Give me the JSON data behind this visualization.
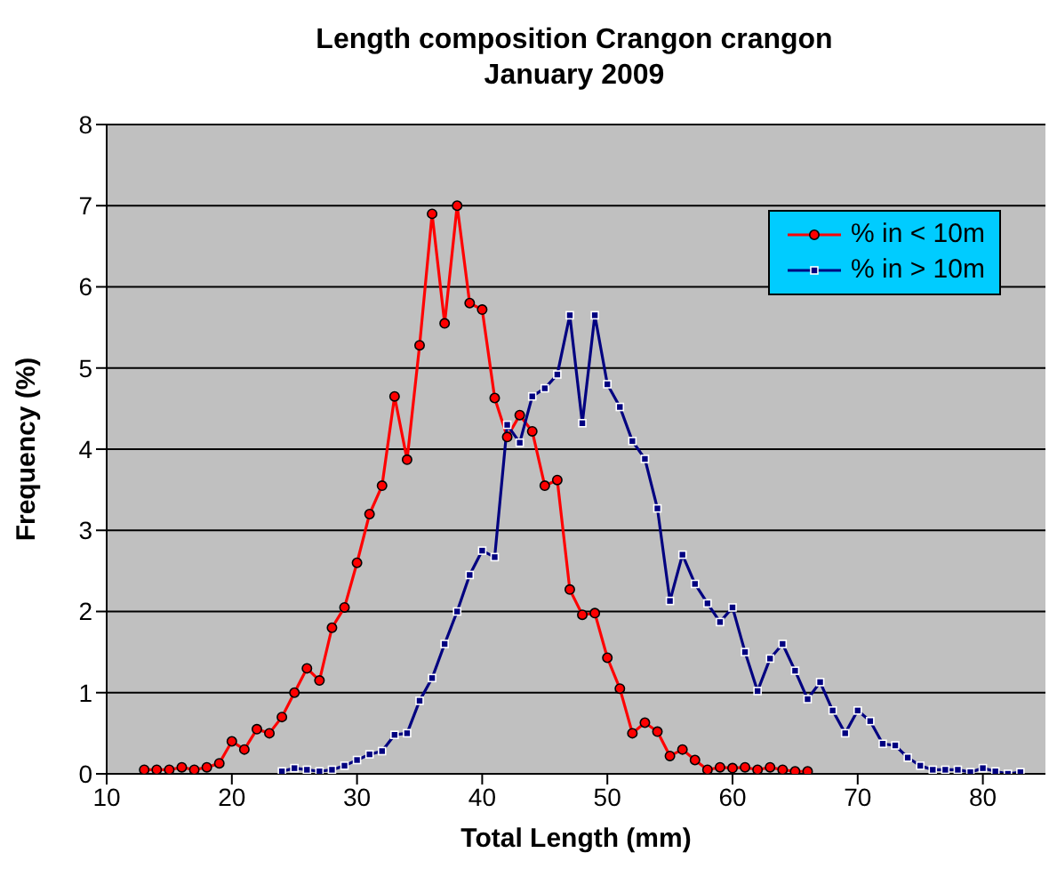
{
  "chart_data": {
    "type": "line",
    "title": "Length composition Crangon crangon\nJanuary 2009",
    "xlabel": "Total Length  (mm)",
    "ylabel": "Frequency  (%)",
    "xlim": [
      10,
      85
    ],
    "xticks": [
      10,
      20,
      30,
      40,
      50,
      60,
      70,
      80
    ],
    "ylim": [
      0,
      8
    ],
    "yticks": [
      0,
      1,
      2,
      3,
      4,
      5,
      6,
      7,
      8
    ],
    "grid": "y",
    "legend": "top right",
    "series": [
      {
        "name": "% in < 10m",
        "color": "#ff0000",
        "marker": "circle",
        "x": [
          13,
          14,
          15,
          16,
          17,
          18,
          19,
          20,
          21,
          22,
          23,
          24,
          25,
          26,
          27,
          28,
          29,
          30,
          31,
          32,
          33,
          34,
          35,
          36,
          37,
          38,
          39,
          40,
          41,
          42,
          43,
          44,
          45,
          46,
          47,
          48,
          49,
          50,
          51,
          52,
          53,
          54,
          55,
          56,
          57,
          58,
          59,
          60,
          61,
          62,
          63,
          64,
          65,
          66
        ],
        "values": [
          0.05,
          0.05,
          0.05,
          0.08,
          0.05,
          0.08,
          0.13,
          0.4,
          0.3,
          0.55,
          0.5,
          0.7,
          1.0,
          1.3,
          1.15,
          1.8,
          2.05,
          2.6,
          3.2,
          3.55,
          4.65,
          3.87,
          5.28,
          6.9,
          5.55,
          7.0,
          5.8,
          5.72,
          4.63,
          4.15,
          4.42,
          4.22,
          3.55,
          3.62,
          2.27,
          1.96,
          1.98,
          1.43,
          1.05,
          0.5,
          0.63,
          0.52,
          0.22,
          0.3,
          0.17,
          0.05,
          0.08,
          0.07,
          0.08,
          0.05,
          0.08,
          0.05,
          0.03,
          0.03
        ]
      },
      {
        "name": "% in > 10m",
        "color": "#000080",
        "marker": "square",
        "x": [
          24,
          25,
          26,
          27,
          28,
          29,
          30,
          31,
          32,
          33,
          34,
          35,
          36,
          37,
          38,
          39,
          40,
          41,
          42,
          43,
          44,
          45,
          46,
          47,
          48,
          49,
          50,
          51,
          52,
          53,
          54,
          55,
          56,
          57,
          58,
          59,
          60,
          61,
          62,
          63,
          64,
          65,
          66,
          67,
          68,
          69,
          70,
          71,
          72,
          73,
          74,
          75,
          76,
          77,
          78,
          79,
          80,
          81,
          82,
          83
        ],
        "values": [
          0.03,
          0.07,
          0.05,
          0.03,
          0.05,
          0.1,
          0.17,
          0.24,
          0.28,
          0.48,
          0.5,
          0.9,
          1.18,
          1.6,
          2.0,
          2.45,
          2.75,
          2.67,
          4.3,
          4.08,
          4.65,
          4.75,
          4.92,
          5.65,
          4.32,
          5.65,
          4.8,
          4.52,
          4.1,
          3.88,
          3.27,
          2.13,
          2.7,
          2.34,
          2.1,
          1.87,
          2.05,
          1.5,
          1.02,
          1.42,
          1.6,
          1.27,
          0.92,
          1.13,
          0.78,
          0.5,
          0.78,
          0.65,
          0.37,
          0.35,
          0.2,
          0.1,
          0.05,
          0.05,
          0.05,
          0.02,
          0.07,
          0.03,
          0.0,
          0.02
        ]
      }
    ]
  }
}
